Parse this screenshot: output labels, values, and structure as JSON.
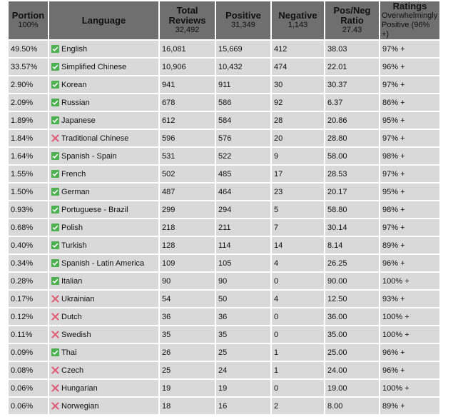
{
  "colors": {
    "header_bg": "#6f6f6f",
    "cell_bg": "#d9d9d9",
    "check": "#4caf50",
    "cross": "#e0607a"
  },
  "headers": {
    "portion": {
      "label": "Portion",
      "sub": "100%"
    },
    "language": {
      "label": "Language"
    },
    "total": {
      "label": "Total Reviews",
      "sub": "32,492"
    },
    "positive": {
      "label": "Positive",
      "sub": "31,349"
    },
    "negative": {
      "label": "Negative",
      "sub": "1,143"
    },
    "ratio": {
      "label": "Pos/Neg Ratio",
      "sub": "27.43"
    },
    "ratings": {
      "label": "Ratings",
      "sub": "Overwhelmingly Positive (96% +)"
    }
  },
  "rows": [
    {
      "portion": "49.50%",
      "icon": "check-icon",
      "language": "English",
      "total": "16,081",
      "positive": "15,669",
      "negative": "412",
      "ratio": "38.03",
      "rating": "97% +"
    },
    {
      "portion": "33.57%",
      "icon": "check-icon",
      "language": "Simplified Chinese",
      "total": "10,906",
      "positive": "10,432",
      "negative": "474",
      "ratio": "22.01",
      "rating": "96% +"
    },
    {
      "portion": "2.90%",
      "icon": "check-icon",
      "language": "Korean",
      "total": "941",
      "positive": "911",
      "negative": "30",
      "ratio": "30.37",
      "rating": "97% +"
    },
    {
      "portion": "2.09%",
      "icon": "check-icon",
      "language": "Russian",
      "total": "678",
      "positive": "586",
      "negative": "92",
      "ratio": "6.37",
      "rating": "86% +"
    },
    {
      "portion": "1.89%",
      "icon": "check-icon",
      "language": "Japanese",
      "total": "612",
      "positive": "584",
      "negative": "28",
      "ratio": "20.86",
      "rating": "95% +"
    },
    {
      "portion": "1.84%",
      "icon": "cross-icon",
      "language": "Traditional Chinese",
      "total": "596",
      "positive": "576",
      "negative": "20",
      "ratio": "28.80",
      "rating": "97% +"
    },
    {
      "portion": "1.64%",
      "icon": "check-icon",
      "language": "Spanish - Spain",
      "total": "531",
      "positive": "522",
      "negative": "9",
      "ratio": "58.00",
      "rating": "98% +"
    },
    {
      "portion": "1.55%",
      "icon": "check-icon",
      "language": "French",
      "total": "502",
      "positive": "485",
      "negative": "17",
      "ratio": "28.53",
      "rating": "97% +"
    },
    {
      "portion": "1.50%",
      "icon": "check-icon",
      "language": "German",
      "total": "487",
      "positive": "464",
      "negative": "23",
      "ratio": "20.17",
      "rating": "95% +"
    },
    {
      "portion": "0.93%",
      "icon": "check-icon",
      "language": "Portuguese - Brazil",
      "total": "299",
      "positive": "294",
      "negative": "5",
      "ratio": "58.80",
      "rating": "98% +"
    },
    {
      "portion": "0.68%",
      "icon": "check-icon",
      "language": "Polish",
      "total": "218",
      "positive": "211",
      "negative": "7",
      "ratio": "30.14",
      "rating": "97% +"
    },
    {
      "portion": "0.40%",
      "icon": "check-icon",
      "language": "Turkish",
      "total": "128",
      "positive": "114",
      "negative": "14",
      "ratio": "8.14",
      "rating": "89% +"
    },
    {
      "portion": "0.34%",
      "icon": "check-icon",
      "language": "Spanish - Latin America",
      "total": "109",
      "positive": "105",
      "negative": "4",
      "ratio": "26.25",
      "rating": "96% +"
    },
    {
      "portion": "0.28%",
      "icon": "check-icon",
      "language": "Italian",
      "total": "90",
      "positive": "90",
      "negative": "0",
      "ratio": "90.00",
      "rating": "100% +"
    },
    {
      "portion": "0.17%",
      "icon": "cross-icon",
      "language": "Ukrainian",
      "total": "54",
      "positive": "50",
      "negative": "4",
      "ratio": "12.50",
      "rating": "93% +"
    },
    {
      "portion": "0.12%",
      "icon": "cross-icon",
      "language": "Dutch",
      "total": "36",
      "positive": "36",
      "negative": "0",
      "ratio": "36.00",
      "rating": "100% +"
    },
    {
      "portion": "0.11%",
      "icon": "cross-icon",
      "language": "Swedish",
      "total": "35",
      "positive": "35",
      "negative": "0",
      "ratio": "35.00",
      "rating": "100% +"
    },
    {
      "portion": "0.09%",
      "icon": "check-icon",
      "language": "Thai",
      "total": "26",
      "positive": "25",
      "negative": "1",
      "ratio": "25.00",
      "rating": "96% +"
    },
    {
      "portion": "0.08%",
      "icon": "cross-icon",
      "language": "Czech",
      "total": "25",
      "positive": "24",
      "negative": "1",
      "ratio": "24.00",
      "rating": "96% +"
    },
    {
      "portion": "0.06%",
      "icon": "cross-icon",
      "language": "Hungarian",
      "total": "19",
      "positive": "19",
      "negative": "0",
      "ratio": "19.00",
      "rating": "100% +"
    },
    {
      "portion": "0.06%",
      "icon": "cross-icon",
      "language": "Norwegian",
      "total": "18",
      "positive": "16",
      "negative": "2",
      "ratio": "8.00",
      "rating": "89% +"
    }
  ]
}
